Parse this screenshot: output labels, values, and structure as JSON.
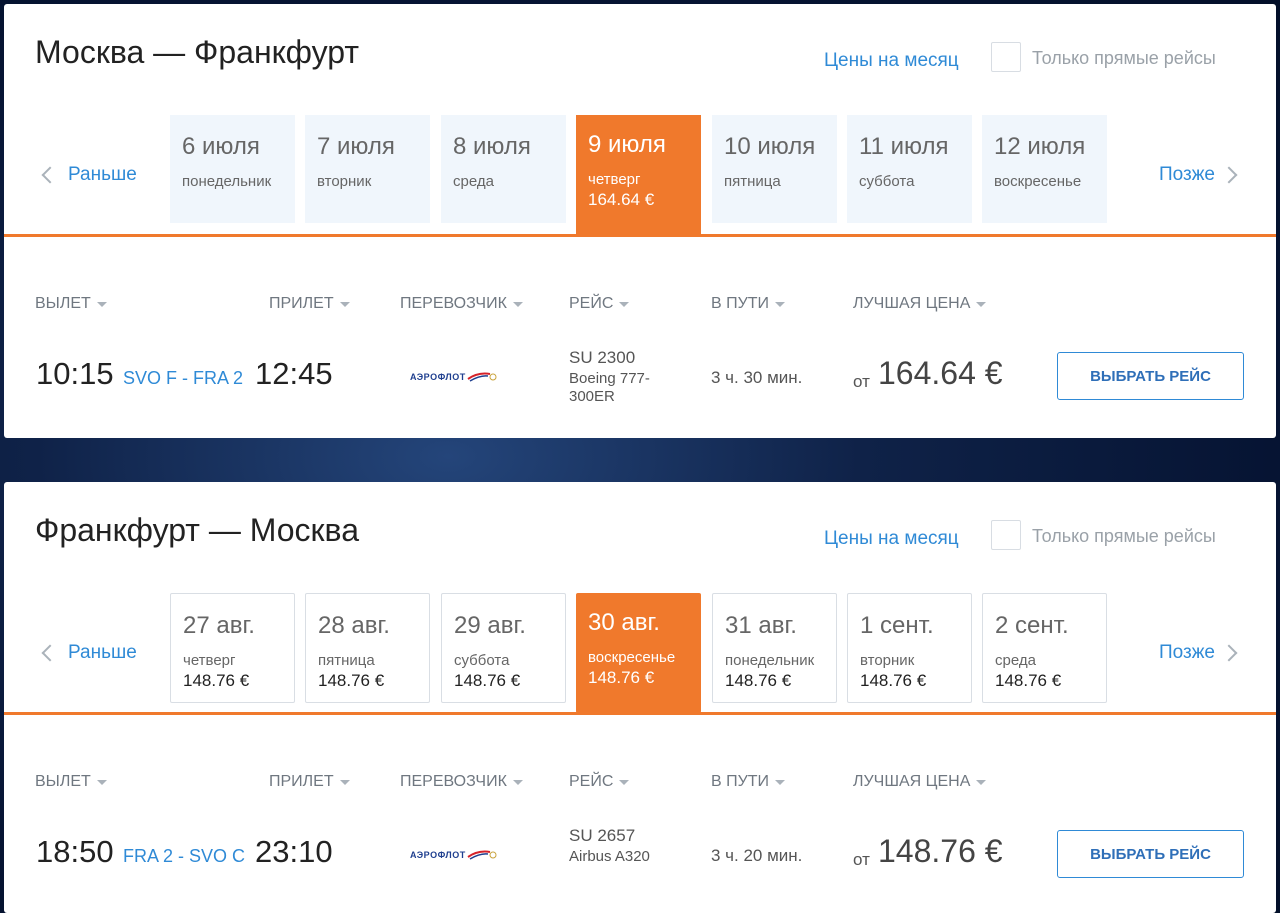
{
  "colors": {
    "accent": "#f0792c",
    "link": "#2f8ad6",
    "background": "#0f2248"
  },
  "panels": [
    {
      "title": "Москва — Франкфурт",
      "month_link": "Цены на месяц",
      "direct_label": "Только прямые рейсы",
      "prev_label": "Раньше",
      "next_label": "Позже",
      "dates": [
        {
          "date": "6 июля",
          "weekday": "понедельник",
          "price": ""
        },
        {
          "date": "7 июля",
          "weekday": "вторник",
          "price": ""
        },
        {
          "date": "8 июля",
          "weekday": "среда",
          "price": ""
        },
        {
          "date": "9 июля",
          "weekday": "четверг",
          "price": "164.64 €",
          "selected": true
        },
        {
          "date": "10 июля",
          "weekday": "пятница",
          "price": ""
        },
        {
          "date": "11 июля",
          "weekday": "суббота",
          "price": ""
        },
        {
          "date": "12 июля",
          "weekday": "воскресенье",
          "price": ""
        }
      ],
      "headers": {
        "departure": "ВЫЛЕТ",
        "arrival": "ПРИЛЕТ",
        "carrier": "ПЕРЕВОЗЧИК",
        "flight": "РЕЙС",
        "duration": "В ПУТИ",
        "best_price": "ЛУЧШАЯ ЦЕНА"
      },
      "flight": {
        "dep_time": "10:15",
        "route": "SVO F - FRA 2",
        "arr_time": "12:45",
        "carrier_logo": "АЭРОФЛОТ",
        "flight_number": "SU 2300",
        "aircraft": "Boeing 777-300ER",
        "duration": "3 ч. 30 мин.",
        "price_prefix": "от",
        "price": "164.64 €",
        "select_label": "ВЫБРАТЬ РЕЙС"
      }
    },
    {
      "title": "Франкфурт — Москва",
      "month_link": "Цены на месяц",
      "direct_label": "Только прямые рейсы",
      "prev_label": "Раньше",
      "next_label": "Позже",
      "dates": [
        {
          "date": "27 авг.",
          "weekday": "четверг",
          "price": "148.76 €"
        },
        {
          "date": "28 авг.",
          "weekday": "пятница",
          "price": "148.76 €"
        },
        {
          "date": "29 авг.",
          "weekday": "суббота",
          "price": "148.76 €"
        },
        {
          "date": "30 авг.",
          "weekday": "воскресенье",
          "price": "148.76 €",
          "selected": true
        },
        {
          "date": "31 авг.",
          "weekday": "понедельник",
          "price": "148.76 €"
        },
        {
          "date": "1 сент.",
          "weekday": "вторник",
          "price": "148.76 €"
        },
        {
          "date": "2 сент.",
          "weekday": "среда",
          "price": "148.76 €"
        }
      ],
      "headers": {
        "departure": "ВЫЛЕТ",
        "arrival": "ПРИЛЕТ",
        "carrier": "ПЕРЕВОЗЧИК",
        "flight": "РЕЙС",
        "duration": "В ПУТИ",
        "best_price": "ЛУЧШАЯ ЦЕНА"
      },
      "flight": {
        "dep_time": "18:50",
        "route": "FRA 2 - SVO C",
        "arr_time": "23:10",
        "carrier_logo": "АЭРОФЛОТ",
        "flight_number": "SU 2657",
        "aircraft": "Airbus A320",
        "duration": "3 ч. 20 мин.",
        "price_prefix": "от",
        "price": "148.76 €",
        "select_label": "ВЫБРАТЬ РЕЙС"
      }
    }
  ]
}
